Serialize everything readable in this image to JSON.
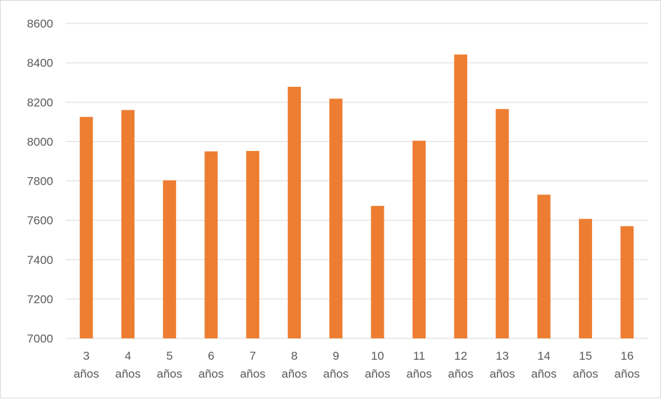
{
  "chart_data": {
    "type": "bar",
    "title": "",
    "xlabel": "",
    "ylabel": "",
    "categories": [
      [
        "3",
        "años"
      ],
      [
        "4",
        "años"
      ],
      [
        "5",
        "años"
      ],
      [
        "6",
        "años"
      ],
      [
        "7",
        "años"
      ],
      [
        "8",
        "años"
      ],
      [
        "9",
        "años"
      ],
      [
        "10",
        "años"
      ],
      [
        "11",
        "años"
      ],
      [
        "12",
        "años"
      ],
      [
        "13",
        "años"
      ],
      [
        "14",
        "años"
      ],
      [
        "15",
        "años"
      ],
      [
        "16",
        "años"
      ]
    ],
    "values": [
      8125,
      8160,
      7803,
      7950,
      7952,
      8278,
      8218,
      7673,
      8004,
      8442,
      8165,
      7730,
      7607,
      7570
    ],
    "ylim": [
      7000,
      8600
    ],
    "yticks": [
      "7000",
      "7200",
      "7400",
      "7600",
      "7800",
      "8000",
      "8200",
      "8400",
      "8600"
    ],
    "grid": true,
    "legend": "none",
    "bar_color": "#ed7d31"
  }
}
